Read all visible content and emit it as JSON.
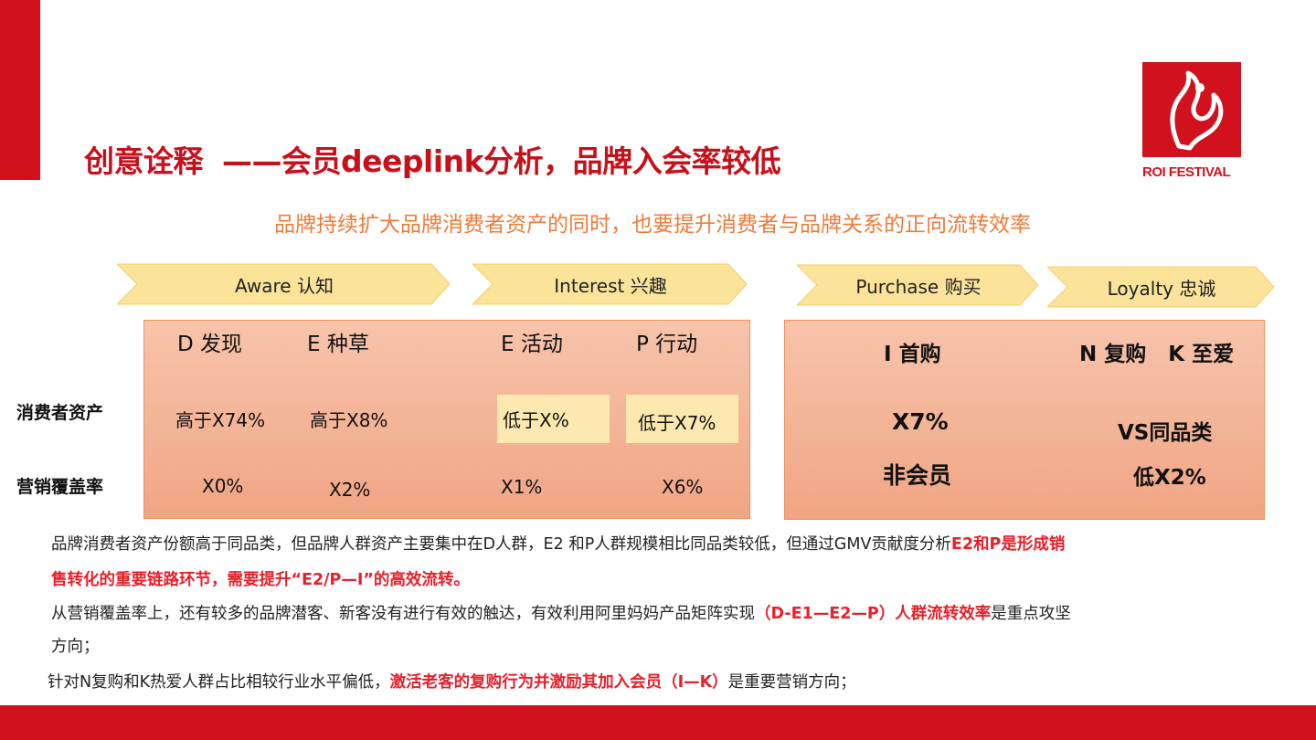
{
  "brand": {
    "logo_text": "ROI FESTIVAL",
    "accent_color": "#d1121c",
    "subtitle_color": "#ee7b3a"
  },
  "title": {
    "prefix": "创意诠释",
    "main": "——会员deeplink分析，品牌入会率较低"
  },
  "subtitle": "品牌持续扩大品牌消费者资产的同时，也要提升消费者与品牌关系的正向流转效率",
  "stages": [
    {
      "label": "Aware 认知"
    },
    {
      "label": "Interest 兴趣"
    },
    {
      "label": "Purchase 购买"
    },
    {
      "label": "Loyalty 忠诚"
    }
  ],
  "row_labels": {
    "assets": "消费者资产",
    "coverage": "营销覆盖率"
  },
  "left_panel": {
    "columns": [
      {
        "header": "D 发现",
        "assets": "高于X74%",
        "coverage": "X0%"
      },
      {
        "header": "E 种草",
        "assets": "高于X8%",
        "coverage": "X2%"
      },
      {
        "header": "E 活动",
        "assets": "低于X%",
        "coverage": "X1%"
      },
      {
        "header": "P 行动",
        "assets": "低于X7%",
        "coverage": "X6%"
      }
    ]
  },
  "right_panel": {
    "col1_header": "I 首购",
    "col2_header": "N 复购   K 至爱",
    "value1_line1": "X7%",
    "value1_line2": "非会员",
    "value2_line1": "VS同品类",
    "value2_line2": "低X2%"
  },
  "paragraphs": {
    "p1_normal": "品牌消费者资产份额高于同品类，但品牌人群资产主要集中在D人群，E2 和P人群规模相比同品类较低，但通过GMV贡献度分析",
    "p1_red_a": "E2和P是形成销",
    "p1_red_b": "售转化的重要链路环节，需要提升“E2/P—I”的高效流转。",
    "p2_normal": "从营销覆盖率上，还有较多的品牌潜客、新客没有进行有效的触达，有效利用阿里妈妈产品矩阵实现",
    "p2_red": "（D-E1—E2—P）人群流转效率",
    "p2_tail": "是重点攻坚",
    "p2_line2": "方向；",
    "p3_normal": "针对N复购和K热爱人群占比相较行业水平偏低，",
    "p3_red": "激活老客的复购行为并激励其加入会员（I—K）",
    "p3_tail": "是重要营销方向；"
  }
}
